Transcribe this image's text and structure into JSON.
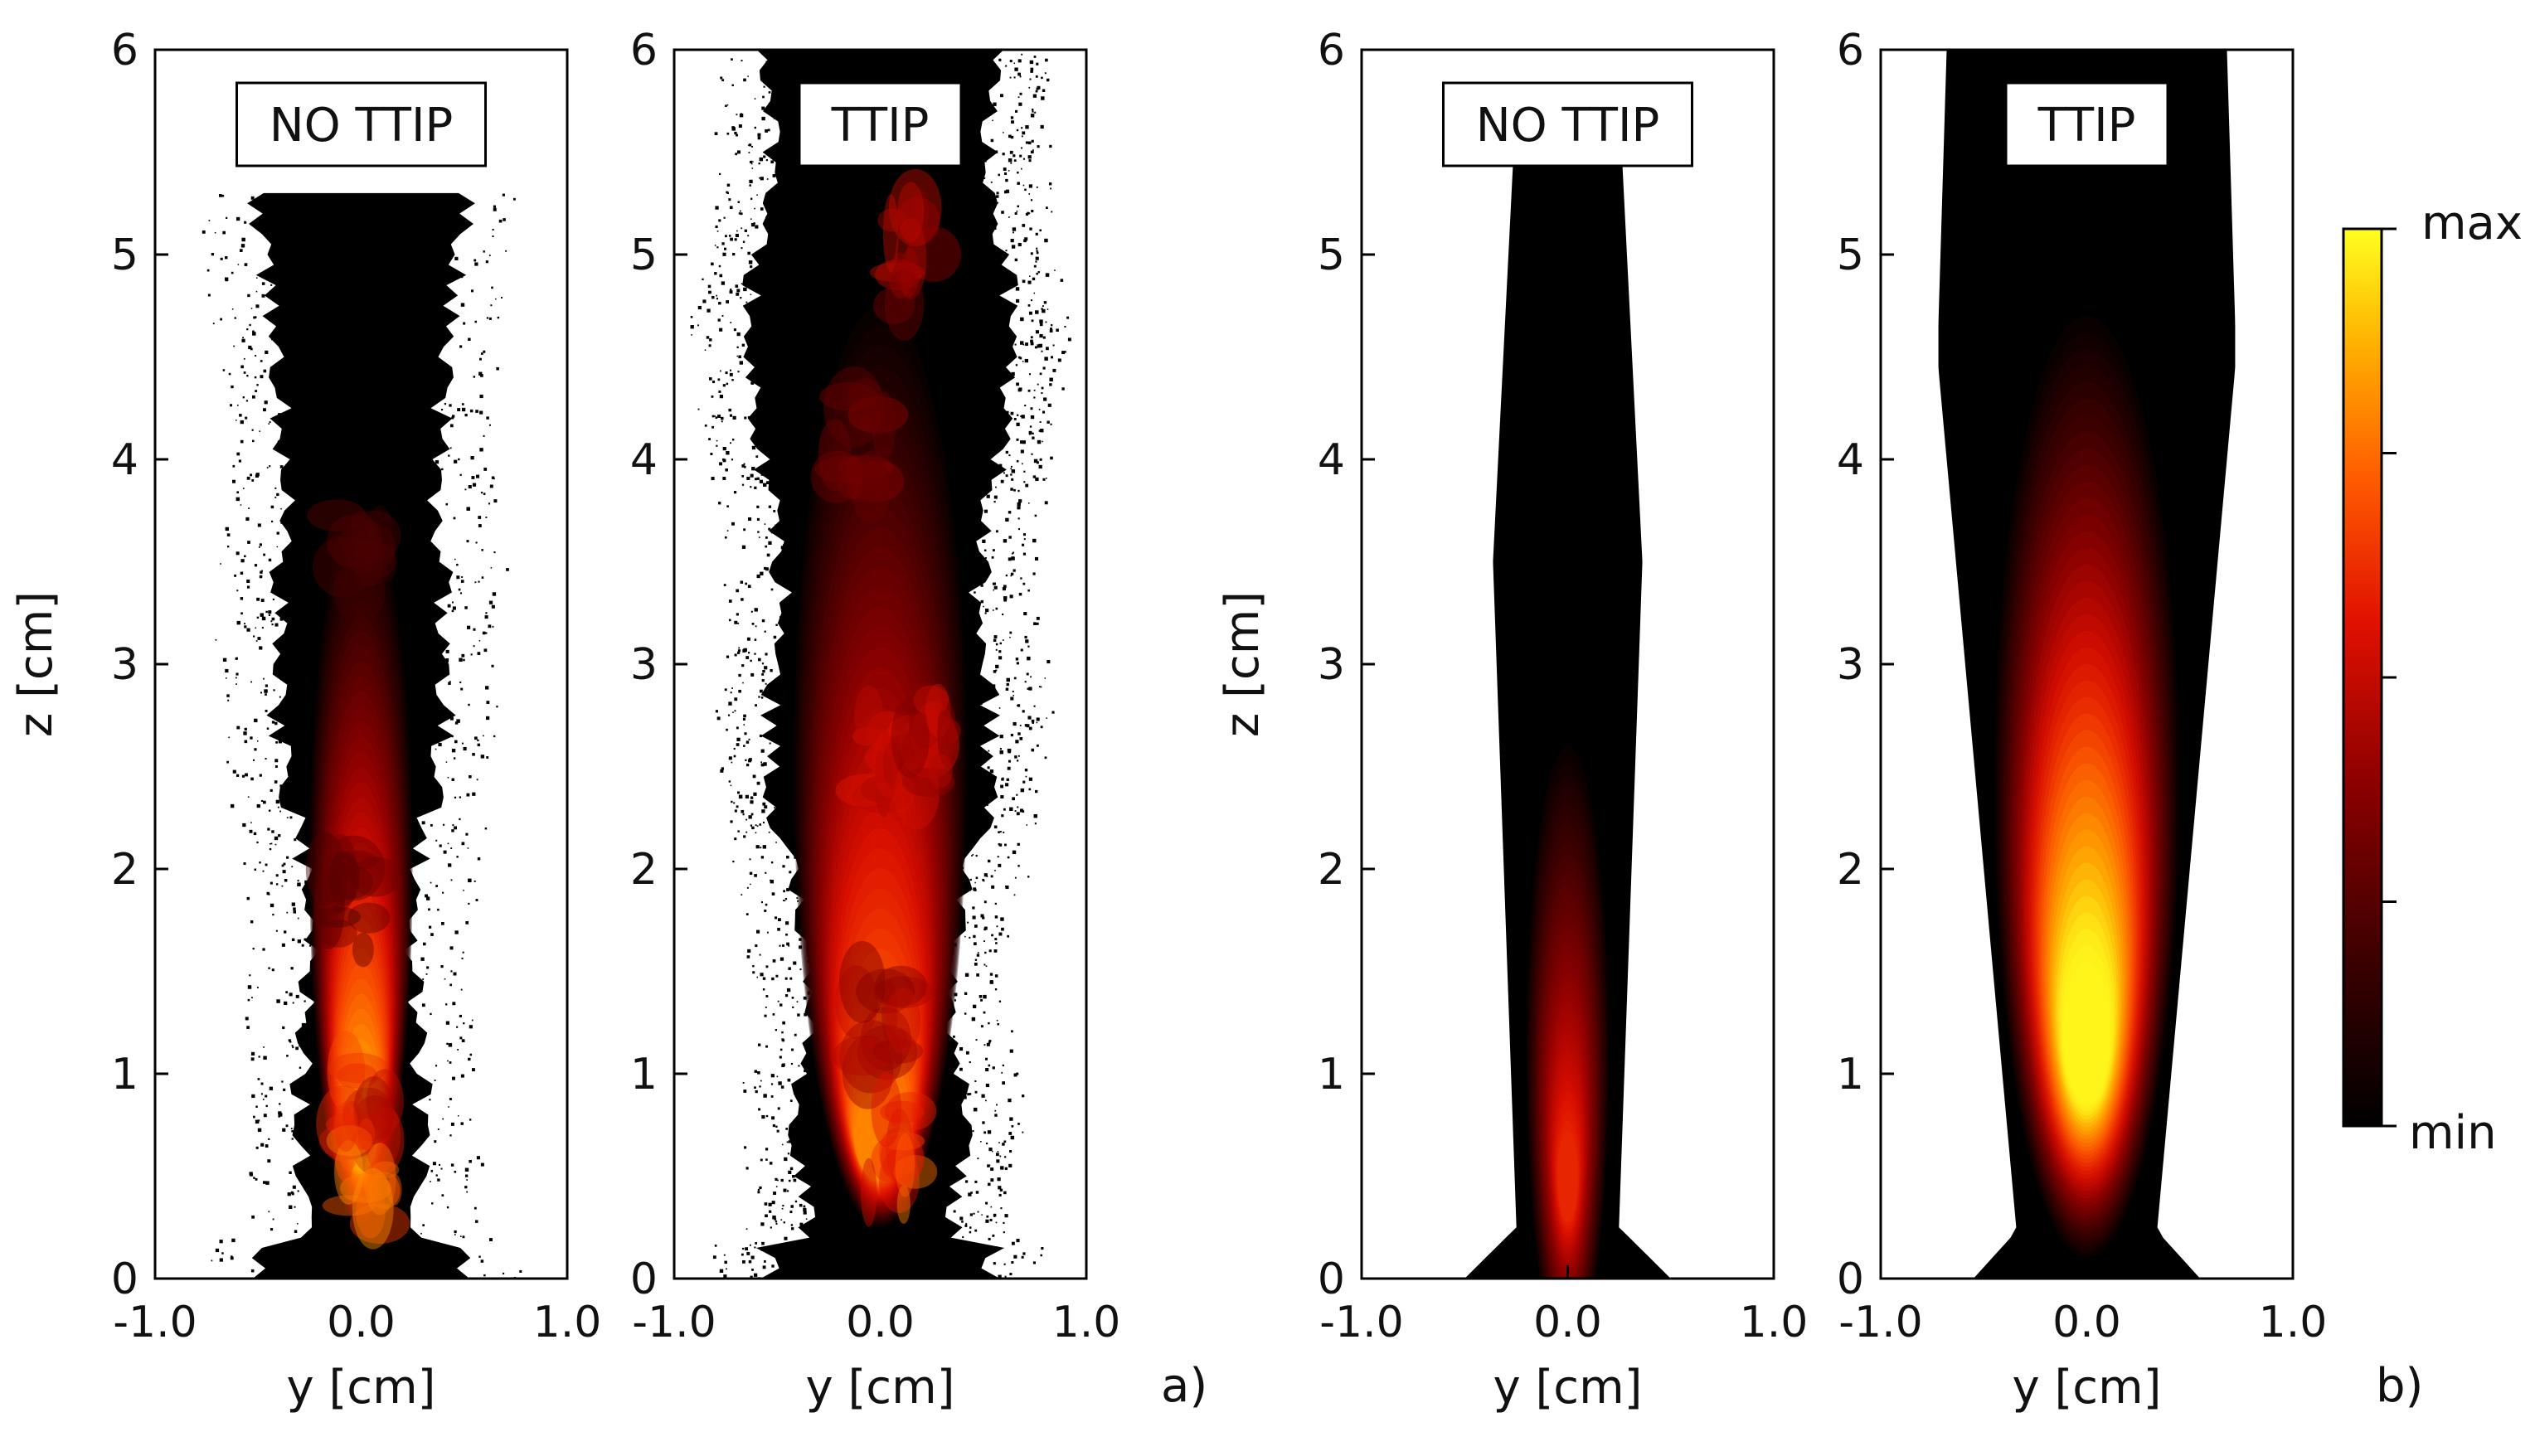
{
  "chart_data": {
    "type": "heatmap",
    "description_labels": {
      "panel_a_letter": "a)",
      "panel_b_letter": "b)"
    },
    "colorbar": {
      "max_label": "max",
      "min_label": "min",
      "colors": [
        "#000000",
        "#3a0000",
        "#8b0000",
        "#e01000",
        "#ff5a00",
        "#ffb000",
        "#ffff20"
      ]
    },
    "panels": [
      {
        "tag": "NO TTIP",
        "group": "a",
        "kind": "instantaneous",
        "xlabel": "y [cm]",
        "ylabel": "z [cm]",
        "xlim": [
          -1.0,
          1.0
        ],
        "ylim": [
          0,
          6
        ],
        "xticks": [
          "-1.0",
          "0.0",
          "1.0"
        ],
        "yticks": [
          "0",
          "1",
          "2",
          "3",
          "4",
          "5",
          "6"
        ],
        "plume_top_cm": 5.3,
        "peak_height_cm": 0.7,
        "peak_intensity": 0.85
      },
      {
        "tag": "TTIP",
        "group": "a",
        "kind": "instantaneous",
        "xlabel": "y [cm]",
        "ylabel": "",
        "xlim": [
          -1.0,
          1.0
        ],
        "ylim": [
          0,
          6
        ],
        "xticks": [
          "-1.0",
          "0.0",
          "1.0"
        ],
        "yticks": [
          "0",
          "1",
          "2",
          "3",
          "4",
          "5",
          "6"
        ],
        "plume_top_cm": 6.0,
        "peak_height_cm": 0.7,
        "peak_intensity": 0.75
      },
      {
        "tag": "NO TTIP",
        "group": "b",
        "kind": "averaged",
        "xlabel": "y [cm]",
        "ylabel": "z [cm]",
        "xlim": [
          -1.0,
          1.0
        ],
        "ylim": [
          0,
          6
        ],
        "xticks": [
          "-1.0",
          "0.0",
          "1.0"
        ],
        "yticks": [
          "0",
          "1",
          "2",
          "3",
          "4",
          "5",
          "6"
        ],
        "plume_top_cm": 5.5,
        "peak_height_cm": 0.5,
        "peak_intensity": 0.55
      },
      {
        "tag": "TTIP",
        "group": "b",
        "kind": "averaged",
        "xlabel": "y [cm]",
        "ylabel": "",
        "xlim": [
          -1.0,
          1.0
        ],
        "ylim": [
          0,
          6
        ],
        "xticks": [
          "-1.0",
          "0.0",
          "1.0"
        ],
        "yticks": [
          "0",
          "1",
          "2",
          "3",
          "4",
          "5",
          "6"
        ],
        "plume_top_cm": 6.0,
        "peak_height_cm": 1.2,
        "peak_intensity": 1.0
      }
    ]
  }
}
